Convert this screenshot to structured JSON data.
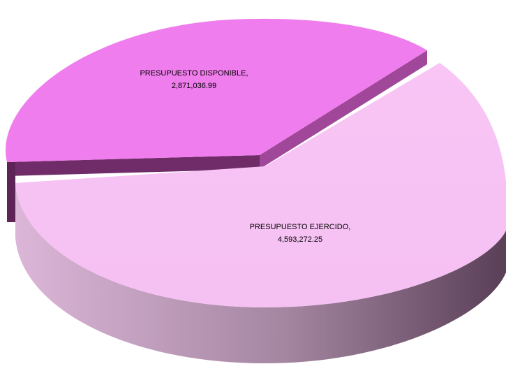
{
  "chart_data": {
    "type": "pie",
    "title": "",
    "slices": [
      {
        "name": "PRESUPUESTO DISPONIBLE,",
        "value": 2871036.99,
        "value_label": "2,871,036.99",
        "color": "#f07ded",
        "side_color": "#8e3a86"
      },
      {
        "name": "PRESUPUESTO EJERCIDO,",
        "value": 4593272.25,
        "value_label": "4,593,272.25",
        "color": "#f8c5f5",
        "side_color": "#8f6f8c"
      }
    ],
    "style": "3d-exploded",
    "legend": "none"
  }
}
